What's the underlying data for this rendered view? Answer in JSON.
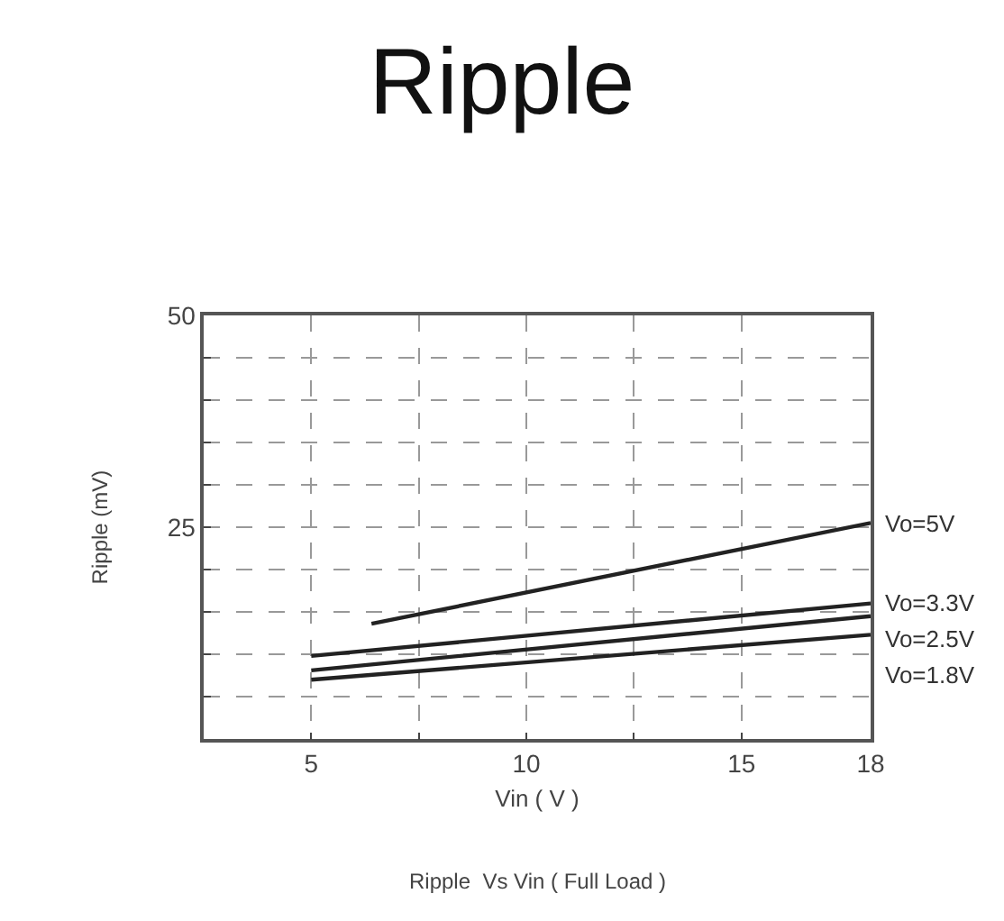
{
  "chart_data": {
    "type": "line",
    "title": "Ripple",
    "xlabel": "Vin ( V )",
    "ylabel": "Ripple (mV)",
    "annotations": [
      "Ripple  Vs Vin ( Full Load )"
    ],
    "series": [
      {
        "name": "Vo=5V",
        "color": "#222222",
        "x": [
          6.4,
          18
        ],
        "values": [
          13.6,
          25.5
        ]
      },
      {
        "name": "Vo=3.3V",
        "color": "#222222",
        "x": [
          5,
          18
        ],
        "values": [
          9.8,
          16.0
        ]
      },
      {
        "name": "Vo=2.5V",
        "color": "#222222",
        "x": [
          5,
          18
        ],
        "values": [
          8.1,
          14.5
        ]
      },
      {
        "name": "Vo=1.8V",
        "color": "#222222",
        "x": [
          5,
          18
        ],
        "values": [
          7.0,
          12.3
        ]
      }
    ],
    "xlim": [
      2.5,
      18
    ],
    "xticks": [
      5,
      {
        "value": 7.5,
        "label": null
      },
      10,
      {
        "value": 12.5,
        "label": null
      },
      15,
      18
    ],
    "ylim": [
      0,
      50
    ],
    "yticks": [
      {
        "value": 5,
        "label": null
      },
      {
        "value": 10,
        "label": null
      },
      {
        "value": 15,
        "label": null
      },
      {
        "value": 20,
        "label": null
      },
      25,
      {
        "value": 30,
        "label": null
      },
      {
        "value": 35,
        "label": null
      },
      {
        "value": 40,
        "label": null
      },
      {
        "value": 45,
        "label": null
      },
      50
    ],
    "grid": true,
    "legend": false,
    "marker": "none",
    "line_style": "solid"
  }
}
